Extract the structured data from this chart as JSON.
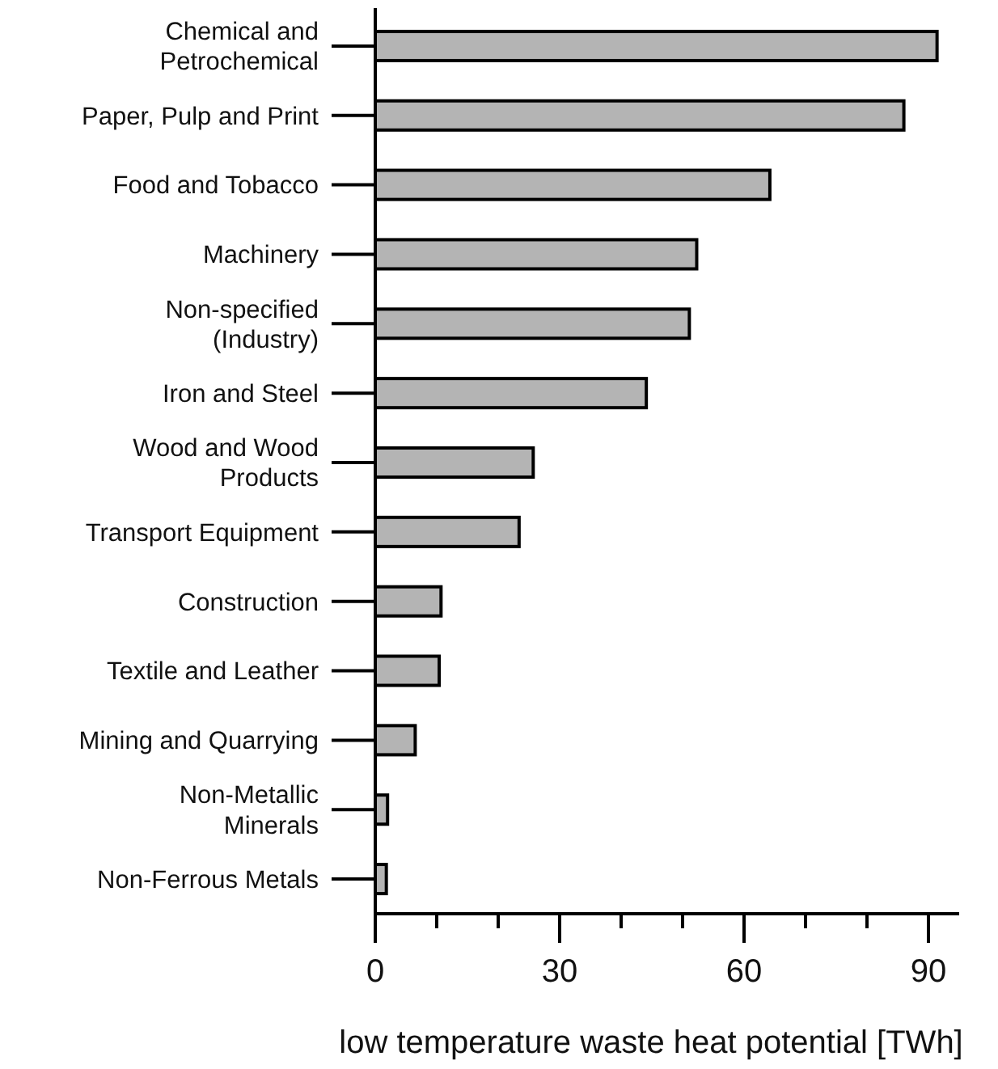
{
  "chart_data": {
    "type": "bar",
    "orientation": "horizontal",
    "xlabel": "low temperature waste heat potential [TWh]",
    "categories": [
      "Chemical and\nPetrochemical",
      "Paper, Pulp and Print",
      "Food and Tobacco",
      "Machinery",
      "Non-specified\n(Industry)",
      "Iron and Steel",
      "Wood and Wood\nProducts",
      "Transport Equipment",
      "Construction",
      "Textile and Leather",
      "Mining and Quarrying",
      "Non-Metallic\nMinerals",
      "Non-Ferrous Metals"
    ],
    "values": [
      91.4,
      86,
      64.2,
      52.3,
      51.1,
      44.1,
      25.7,
      23.4,
      10.7,
      10.4,
      6.5,
      2.0,
      1.8
    ],
    "color": "#b4b4b4",
    "xlim": [
      0,
      95
    ],
    "xticks": [
      0,
      {
        "value": 10,
        "label": null
      },
      {
        "value": 20,
        "label": null
      },
      30,
      {
        "value": 40,
        "label": null
      },
      {
        "value": 50,
        "label": null
      },
      60,
      {
        "value": 70,
        "label": null
      },
      {
        "value": 80,
        "label": null
      },
      90
    ],
    "grid": false
  }
}
